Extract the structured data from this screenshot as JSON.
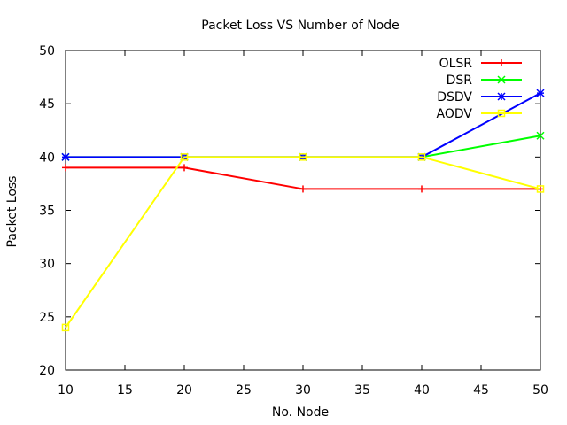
{
  "chart_data": {
    "type": "line",
    "title": "Packet Loss VS Number of Node",
    "xlabel": "No. Node",
    "ylabel": "Packet Loss",
    "xlim": [
      10,
      50
    ],
    "ylim": [
      20,
      50
    ],
    "xticks": [
      10,
      15,
      20,
      25,
      30,
      35,
      40,
      45,
      50
    ],
    "yticks": [
      20,
      25,
      30,
      35,
      40,
      45,
      50
    ],
    "x": [
      10,
      20,
      30,
      40,
      50
    ],
    "grid": false,
    "legend_position": "top-right",
    "series": [
      {
        "name": "OLSR",
        "color": "#ff0000",
        "marker": "plus",
        "values": [
          39,
          39,
          37,
          37,
          37
        ]
      },
      {
        "name": "DSR",
        "color": "#00ff00",
        "marker": "cross",
        "values": [
          40,
          40,
          40,
          40,
          42
        ]
      },
      {
        "name": "DSDV",
        "color": "#0000ff",
        "marker": "star",
        "values": [
          40,
          40,
          40,
          40,
          46
        ]
      },
      {
        "name": "AODV",
        "color": "#ffff00",
        "marker": "square",
        "values": [
          24,
          40,
          40,
          40,
          37
        ]
      }
    ]
  }
}
